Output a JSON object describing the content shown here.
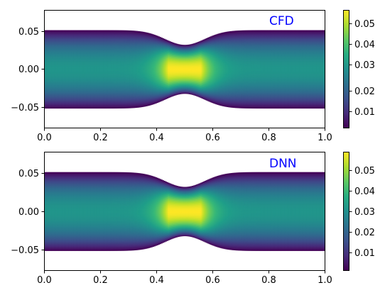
{
  "chart_data": [
    {
      "type": "heatmap",
      "label": "CFD",
      "label_color": "#0000ff",
      "xlim": [
        0.0,
        1.0
      ],
      "ylim": [
        -0.08,
        0.08
      ],
      "x_ticks": [
        "0.0",
        "0.2",
        "0.4",
        "0.6",
        "0.8",
        "1.0"
      ],
      "x_tick_values": [
        0.0,
        0.2,
        0.4,
        0.6,
        0.8,
        1.0
      ],
      "y_ticks": [
        "0.05",
        "0.00",
        "−0.05"
      ],
      "y_tick_values": [
        0.05,
        0.0,
        -0.05
      ],
      "colormap": "viridis",
      "colorbar_range": [
        0.001,
        0.058
      ],
      "colorbar_ticks": [
        "0.05",
        "0.04",
        "0.03",
        "0.02",
        "0.01"
      ],
      "colorbar_tick_values": [
        0.05,
        0.04,
        0.03,
        0.02,
        0.01
      ],
      "geometry": {
        "wall_half_width": 0.053,
        "throat_half_width": 0.033,
        "throat_x": 0.5,
        "stenosis_sigma": 0.1
      },
      "field": {
        "max_value": 0.058,
        "max_location": [
          0.5,
          0.0
        ],
        "min_value": 0.001
      }
    },
    {
      "type": "heatmap",
      "label": "DNN",
      "label_color": "#0000ff",
      "xlim": [
        0.0,
        1.0
      ],
      "ylim": [
        -0.08,
        0.08
      ],
      "x_ticks": [
        "0.0",
        "0.2",
        "0.4",
        "0.6",
        "0.8",
        "1.0"
      ],
      "x_tick_values": [
        0.0,
        0.2,
        0.4,
        0.6,
        0.8,
        1.0
      ],
      "y_ticks": [
        "0.05",
        "0.00",
        "−0.05"
      ],
      "y_tick_values": [
        0.05,
        0.0,
        -0.05
      ],
      "colormap": "viridis",
      "colorbar_range": [
        0.001,
        0.058
      ],
      "colorbar_ticks": [
        "0.05",
        "0.04",
        "0.03",
        "0.02",
        "0.01"
      ],
      "colorbar_tick_values": [
        0.05,
        0.04,
        0.03,
        0.02,
        0.01
      ],
      "geometry": {
        "wall_half_width": 0.053,
        "throat_half_width": 0.033,
        "throat_x": 0.5,
        "stenosis_sigma": 0.1
      },
      "field": {
        "max_value": 0.058,
        "max_location": [
          0.5,
          0.0
        ],
        "min_value": 0.001
      }
    }
  ]
}
